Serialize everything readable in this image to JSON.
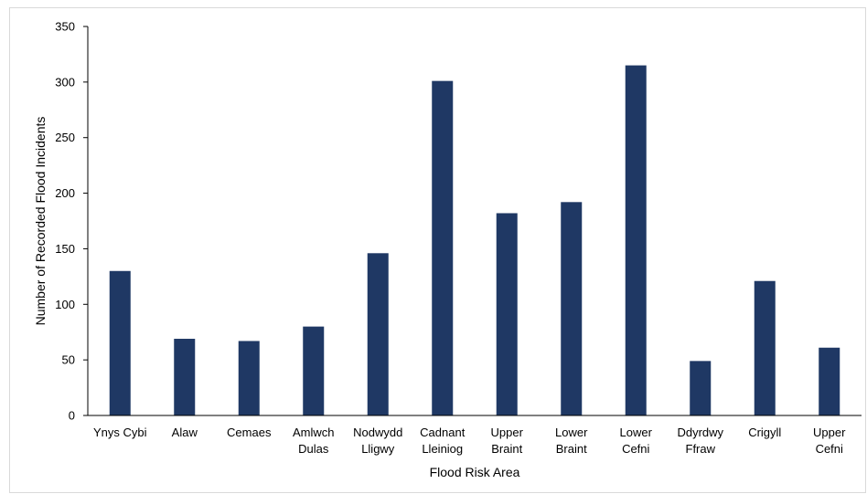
{
  "chart_data": {
    "type": "bar",
    "title": "",
    "xlabel": "Flood Risk Area",
    "ylabel": "Number of Recorded Flood Incidents",
    "ylim": [
      0,
      350
    ],
    "yticks": [
      0,
      50,
      100,
      150,
      200,
      250,
      300,
      350
    ],
    "grid": false,
    "legend": "none",
    "bar_color": "#1f3864",
    "categories": [
      [
        "Ynys Cybi"
      ],
      [
        "Alaw"
      ],
      [
        "Cemaes"
      ],
      [
        "Amlwch",
        "Dulas"
      ],
      [
        "Nodwydd",
        "Lligwy"
      ],
      [
        "Cadnant",
        "Lleiniog"
      ],
      [
        "Upper",
        "Braint"
      ],
      [
        "Lower",
        "Braint"
      ],
      [
        "Lower",
        "Cefni"
      ],
      [
        "Ddyrdwy",
        "Ffraw"
      ],
      [
        "Crigyll"
      ],
      [
        "Upper",
        "Cefni"
      ]
    ],
    "values": [
      130,
      69,
      67,
      80,
      146,
      301,
      182,
      192,
      315,
      49,
      121,
      61
    ]
  }
}
